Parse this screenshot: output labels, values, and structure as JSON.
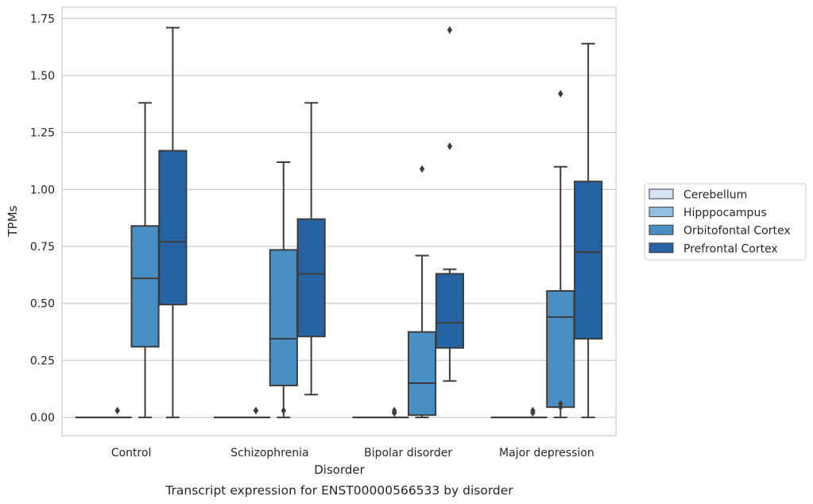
{
  "chart_data": {
    "type": "box",
    "caption": "Transcript expression for ENST00000566533 by disorder",
    "xlabel": "Disorder",
    "ylabel": "TPMs",
    "ylim": [
      -0.08,
      1.8
    ],
    "yticks": [
      0.0,
      0.25,
      0.5,
      0.75,
      1.0,
      1.25,
      1.5,
      1.75
    ],
    "ytick_labels": [
      "0.00",
      "0.25",
      "0.50",
      "0.75",
      "1.00",
      "1.25",
      "1.50",
      "1.75"
    ],
    "grid": "horizontal",
    "legend_position": "right",
    "categories": [
      "Control",
      "Schizophrenia",
      "Bipolar disorder",
      "Major depression"
    ],
    "series": [
      {
        "name": "Cerebellum",
        "color": "#d6e4f2",
        "boxes": [
          {
            "q1": 0,
            "median": 0,
            "q3": 0,
            "whislo": 0,
            "whishi": 0,
            "fliers": []
          },
          {
            "q1": 0,
            "median": 0,
            "q3": 0,
            "whislo": 0,
            "whishi": 0,
            "fliers": []
          },
          {
            "q1": 0,
            "median": 0,
            "q3": 0,
            "whislo": 0,
            "whishi": 0,
            "fliers": []
          },
          {
            "q1": 0,
            "median": 0,
            "q3": 0,
            "whislo": 0,
            "whishi": 0,
            "fliers": []
          }
        ]
      },
      {
        "name": "Hipppocampus",
        "color": "#94bfde",
        "boxes": [
          {
            "q1": 0,
            "median": 0,
            "q3": 0,
            "whislo": 0,
            "whishi": 0,
            "fliers": [
              0.03
            ]
          },
          {
            "q1": 0,
            "median": 0,
            "q3": 0,
            "whislo": 0,
            "whishi": 0,
            "fliers": [
              0.03,
              0.03
            ]
          },
          {
            "q1": 0,
            "median": 0,
            "q3": 0,
            "whislo": 0,
            "whishi": 0,
            "fliers": [
              0.02,
              0.03,
              0.02
            ]
          },
          {
            "q1": 0,
            "median": 0,
            "q3": 0,
            "whislo": 0,
            "whishi": 0,
            "fliers": [
              0.02,
              0.03
            ]
          }
        ]
      },
      {
        "name": "Orbitofontal Cortex",
        "color": "#4a8fc3",
        "boxes": [
          {
            "q1": 0.31,
            "median": 0.61,
            "q3": 0.84,
            "whislo": 0,
            "whishi": 1.38,
            "fliers": []
          },
          {
            "q1": 0.14,
            "median": 0.345,
            "q3": 0.735,
            "whislo": 0,
            "whishi": 1.12,
            "fliers": [
              0.03
            ]
          },
          {
            "q1": 0.01,
            "median": 0.15,
            "q3": 0.375,
            "whislo": 0,
            "whishi": 0.71,
            "fliers": [
              1.09
            ]
          },
          {
            "q1": 0.045,
            "median": 0.44,
            "q3": 0.555,
            "whislo": 0,
            "whishi": 1.1,
            "fliers": [
              0.045,
              0.06,
              1.42
            ]
          }
        ]
      },
      {
        "name": "Prefrontal Cortex",
        "color": "#2563a5",
        "boxes": [
          {
            "q1": 0.495,
            "median": 0.77,
            "q3": 1.17,
            "whislo": 0,
            "whishi": 1.71,
            "fliers": []
          },
          {
            "q1": 0.355,
            "median": 0.63,
            "q3": 0.87,
            "whislo": 0.1,
            "whishi": 1.38,
            "fliers": []
          },
          {
            "q1": 0.305,
            "median": 0.415,
            "q3": 0.63,
            "whislo": 0.16,
            "whishi": 0.65,
            "fliers": [
              1.19,
              1.7
            ]
          },
          {
            "q1": 0.345,
            "median": 0.725,
            "q3": 1.035,
            "whislo": 0,
            "whishi": 1.64,
            "fliers": []
          }
        ]
      }
    ]
  }
}
